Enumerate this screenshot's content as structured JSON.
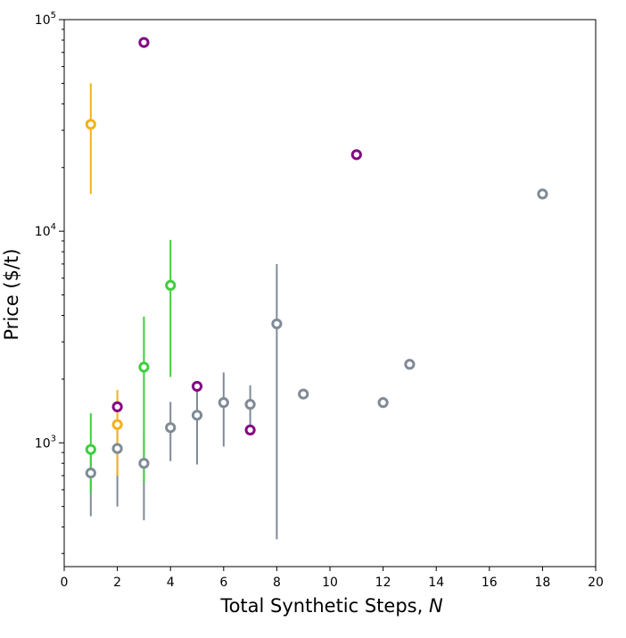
{
  "chart_data": {
    "type": "scatter",
    "title": "",
    "xlabel": "Total Synthetic Steps, ",
    "xlabel_var": "N",
    "ylabel": "Price ($/t)",
    "x_scale": "linear",
    "y_scale": "log",
    "xlim": [
      0,
      20
    ],
    "ylim": [
      260,
      100000
    ],
    "x_ticks": [
      0,
      2,
      4,
      6,
      8,
      10,
      12,
      14,
      16,
      18,
      20
    ],
    "x_tick_labels": [
      "0",
      "2",
      "4",
      "6",
      "8",
      "10",
      "12",
      "14",
      "16",
      "18",
      "20"
    ],
    "y_major_ticks": [
      {
        "value": 1000,
        "base": "10",
        "exp": "3"
      },
      {
        "value": 10000,
        "base": "10",
        "exp": "4"
      },
      {
        "value": 100000,
        "base": "10",
        "exp": "5"
      }
    ],
    "y_minor_ticks": [
      300,
      400,
      500,
      600,
      700,
      800,
      900,
      2000,
      3000,
      4000,
      5000,
      6000,
      7000,
      8000,
      9000,
      20000,
      30000,
      40000,
      50000,
      60000,
      70000,
      80000,
      90000
    ],
    "grid": false,
    "legend": "none",
    "marker": "open-circle",
    "series": [
      {
        "color": "#808b96",
        "points": [
          {
            "x": 1,
            "y": 720,
            "low": 450,
            "high": 900
          },
          {
            "x": 2,
            "y": 940,
            "low": 500,
            "high": 1200
          },
          {
            "x": 3,
            "y": 800,
            "low": 430,
            "high": 1050
          },
          {
            "x": 4,
            "y": 1180,
            "low": 820,
            "high": 1560
          },
          {
            "x": 5,
            "y": 1350,
            "low": 790,
            "high": 1800
          },
          {
            "x": 6,
            "y": 1550,
            "low": 960,
            "high": 2150
          },
          {
            "x": 7,
            "y": 1520,
            "low": 1200,
            "high": 1870
          },
          {
            "x": 8,
            "y": 3650,
            "low": 350,
            "high": 7000
          },
          {
            "x": 9,
            "y": 1700
          },
          {
            "x": 12,
            "y": 1550
          },
          {
            "x": 13,
            "y": 2350
          },
          {
            "x": 18,
            "y": 15000
          }
        ]
      },
      {
        "color": "#3fcf3f",
        "points": [
          {
            "x": 1,
            "y": 930,
            "low": 580,
            "high": 1380
          },
          {
            "x": 3,
            "y": 2280,
            "low": 650,
            "high": 3950
          },
          {
            "x": 4,
            "y": 5550,
            "low": 2050,
            "high": 9100
          }
        ]
      },
      {
        "color": "#f2b21c",
        "points": [
          {
            "x": 1,
            "y": 32000,
            "low": 15000,
            "high": 50000
          },
          {
            "x": 2,
            "y": 1220,
            "low": 700,
            "high": 1780
          }
        ]
      },
      {
        "color": "#830783",
        "points": [
          {
            "x": 2,
            "y": 1480
          },
          {
            "x": 3,
            "y": 78000
          },
          {
            "x": 5,
            "y": 1850
          },
          {
            "x": 7,
            "y": 1150
          },
          {
            "x": 11,
            "y": 23000
          }
        ]
      }
    ]
  }
}
